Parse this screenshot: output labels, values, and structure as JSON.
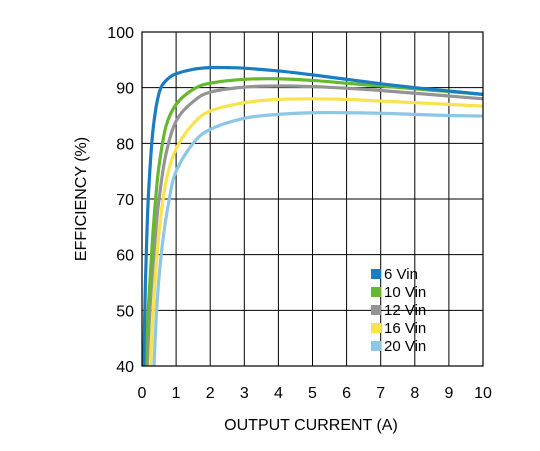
{
  "chart_data": {
    "type": "line",
    "title": "",
    "xlabel": "OUTPUT CURRENT (A)",
    "ylabel": "EFFICIENCY (%)",
    "xlim": [
      0,
      10
    ],
    "ylim": [
      40,
      100
    ],
    "xticks": [
      0,
      1,
      2,
      3,
      4,
      5,
      6,
      7,
      8,
      9,
      10
    ],
    "yticks": [
      40,
      50,
      60,
      70,
      80,
      90,
      100
    ],
    "grid": true,
    "legend_position": "bottom-right",
    "series": [
      {
        "name": "6 Vin",
        "color": "#1a7dc0",
        "x": [
          0.05,
          0.1,
          0.15,
          0.2,
          0.3,
          0.4,
          0.5,
          0.6,
          0.8,
          1.0,
          1.5,
          2.0,
          2.5,
          3.0,
          4.0,
          5.0,
          6.0,
          7.0,
          8.0,
          9.0,
          10.0
        ],
        "y": [
          40,
          55,
          65,
          72,
          81,
          86,
          89,
          90.5,
          91.8,
          92.5,
          93.3,
          93.6,
          93.6,
          93.5,
          93.0,
          92.3,
          91.5,
          90.7,
          90.0,
          89.4,
          88.8
        ]
      },
      {
        "name": "10 Vin",
        "color": "#66b82e",
        "x": [
          0.1,
          0.2,
          0.3,
          0.4,
          0.5,
          0.7,
          1.0,
          1.5,
          2.0,
          3.0,
          4.0,
          5.0,
          6.0,
          7.0,
          8.0,
          9.0,
          10.0
        ],
        "y": [
          40,
          52,
          62,
          70,
          76,
          83,
          87,
          89.7,
          90.8,
          91.5,
          91.6,
          91.3,
          90.8,
          90.3,
          89.8,
          89.3,
          88.8
        ]
      },
      {
        "name": "12 Vin",
        "color": "#949494",
        "x": [
          0.15,
          0.25,
          0.4,
          0.5,
          0.7,
          1.0,
          1.5,
          2.0,
          3.0,
          4.0,
          5.0,
          6.0,
          7.0,
          8.0,
          9.0,
          10.0
        ],
        "y": [
          40,
          52,
          64,
          70,
          78,
          84,
          87.5,
          89.2,
          90.1,
          90.3,
          90.2,
          89.9,
          89.5,
          89.0,
          88.5,
          88.0
        ]
      },
      {
        "name": "16 Vin",
        "color": "#f7e34b",
        "x": [
          0.25,
          0.35,
          0.5,
          0.7,
          1.0,
          1.5,
          2.0,
          3.0,
          4.0,
          5.0,
          6.0,
          7.0,
          8.0,
          9.0,
          10.0
        ],
        "y": [
          40,
          52,
          64,
          73,
          79,
          83.5,
          85.8,
          87.3,
          87.9,
          88.0,
          87.9,
          87.6,
          87.3,
          87.0,
          86.7
        ]
      },
      {
        "name": "20 Vin",
        "color": "#8cc7e6",
        "x": [
          0.35,
          0.45,
          0.6,
          0.8,
          1.0,
          1.5,
          2.0,
          3.0,
          4.0,
          5.0,
          6.0,
          7.0,
          8.0,
          9.0,
          10.0
        ],
        "y": [
          40,
          52,
          62,
          70,
          75,
          80,
          82.5,
          84.5,
          85.2,
          85.5,
          85.5,
          85.4,
          85.2,
          85.0,
          84.9
        ]
      }
    ]
  }
}
